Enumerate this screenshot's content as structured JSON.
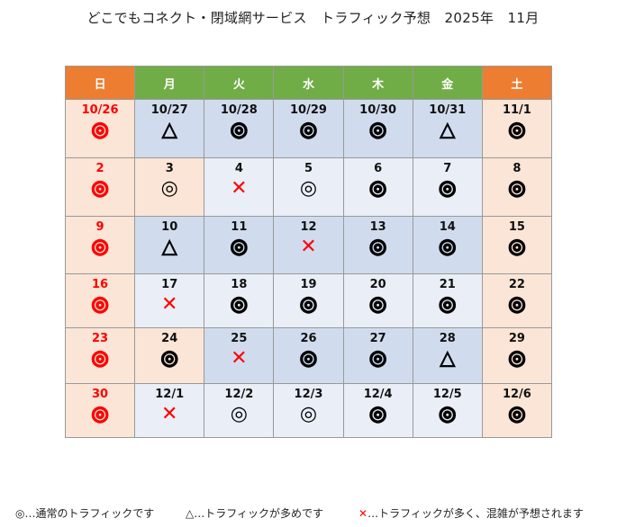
{
  "title": "どこでもコネクト・閉域網サービス　トラフィック予想　2025年　11月",
  "weekdays": [
    "日",
    "月",
    "火",
    "水",
    "木",
    "金",
    "土"
  ],
  "colors": {
    "sunday_header": "#ed7d31",
    "weekday_header": "#70ad47",
    "holiday_bg": "#fbe5d6",
    "busy_week_bg": "#d0dcee",
    "normal_week_bg": "#e9eef7",
    "red": "#ff0000"
  },
  "weeks": [
    [
      {
        "d": "10/26",
        "s": "◎",
        "t": "red",
        "bg": "peach"
      },
      {
        "d": "10/27",
        "s": "△",
        "t": "tri",
        "bg": "blue"
      },
      {
        "d": "10/28",
        "s": "◎",
        "t": "bold",
        "bg": "blue"
      },
      {
        "d": "10/29",
        "s": "◎",
        "t": "bold",
        "bg": "blue"
      },
      {
        "d": "10/30",
        "s": "◎",
        "t": "bold",
        "bg": "blue"
      },
      {
        "d": "10/31",
        "s": "△",
        "t": "tri",
        "bg": "blue"
      },
      {
        "d": "11/1",
        "s": "◎",
        "t": "bold",
        "bg": "peach"
      }
    ],
    [
      {
        "d": "2",
        "s": "◎",
        "t": "red",
        "bg": "peach"
      },
      {
        "d": "3",
        "s": "◎",
        "t": "thin",
        "bg": "peach"
      },
      {
        "d": "4",
        "s": "✕",
        "t": "x",
        "bg": "light"
      },
      {
        "d": "5",
        "s": "◎",
        "t": "thin",
        "bg": "light"
      },
      {
        "d": "6",
        "s": "◎",
        "t": "bold",
        "bg": "light"
      },
      {
        "d": "7",
        "s": "◎",
        "t": "bold",
        "bg": "light"
      },
      {
        "d": "8",
        "s": "◎",
        "t": "bold",
        "bg": "peach"
      }
    ],
    [
      {
        "d": "9",
        "s": "◎",
        "t": "red",
        "bg": "peach"
      },
      {
        "d": "10",
        "s": "△",
        "t": "tri",
        "bg": "blue"
      },
      {
        "d": "11",
        "s": "◎",
        "t": "bold",
        "bg": "blue"
      },
      {
        "d": "12",
        "s": "✕",
        "t": "x",
        "bg": "blue"
      },
      {
        "d": "13",
        "s": "◎",
        "t": "bold",
        "bg": "blue"
      },
      {
        "d": "14",
        "s": "◎",
        "t": "bold",
        "bg": "blue"
      },
      {
        "d": "15",
        "s": "◎",
        "t": "bold",
        "bg": "peach"
      }
    ],
    [
      {
        "d": "16",
        "s": "◎",
        "t": "red",
        "bg": "peach"
      },
      {
        "d": "17",
        "s": "✕",
        "t": "x",
        "bg": "light"
      },
      {
        "d": "18",
        "s": "◎",
        "t": "bold",
        "bg": "light"
      },
      {
        "d": "19",
        "s": "◎",
        "t": "bold",
        "bg": "light"
      },
      {
        "d": "20",
        "s": "◎",
        "t": "bold",
        "bg": "light"
      },
      {
        "d": "21",
        "s": "◎",
        "t": "bold",
        "bg": "light"
      },
      {
        "d": "22",
        "s": "◎",
        "t": "bold",
        "bg": "peach"
      }
    ],
    [
      {
        "d": "23",
        "s": "◎",
        "t": "red",
        "bg": "peach"
      },
      {
        "d": "24",
        "s": "◎",
        "t": "bold",
        "bg": "peach"
      },
      {
        "d": "25",
        "s": "✕",
        "t": "x",
        "bg": "blue"
      },
      {
        "d": "26",
        "s": "◎",
        "t": "bold",
        "bg": "blue"
      },
      {
        "d": "27",
        "s": "◎",
        "t": "bold",
        "bg": "blue"
      },
      {
        "d": "28",
        "s": "△",
        "t": "tri",
        "bg": "blue"
      },
      {
        "d": "29",
        "s": "◎",
        "t": "bold",
        "bg": "peach"
      }
    ],
    [
      {
        "d": "30",
        "s": "◎",
        "t": "red",
        "bg": "peach"
      },
      {
        "d": "12/1",
        "s": "✕",
        "t": "x",
        "bg": "light"
      },
      {
        "d": "12/2",
        "s": "◎",
        "t": "thin",
        "bg": "light"
      },
      {
        "d": "12/3",
        "s": "◎",
        "t": "thin",
        "bg": "light"
      },
      {
        "d": "12/4",
        "s": "◎",
        "t": "bold",
        "bg": "light"
      },
      {
        "d": "12/5",
        "s": "◎",
        "t": "bold",
        "bg": "light"
      },
      {
        "d": "12/6",
        "s": "◎",
        "t": "bold",
        "bg": "peach"
      }
    ]
  ],
  "legend": {
    "normal": "◎…通常のトラフィックです",
    "busy": "△…トラフィックが多めです",
    "congested_symbol": "✕",
    "congested": "…トラフィックが多く、混雑が予想されます"
  }
}
